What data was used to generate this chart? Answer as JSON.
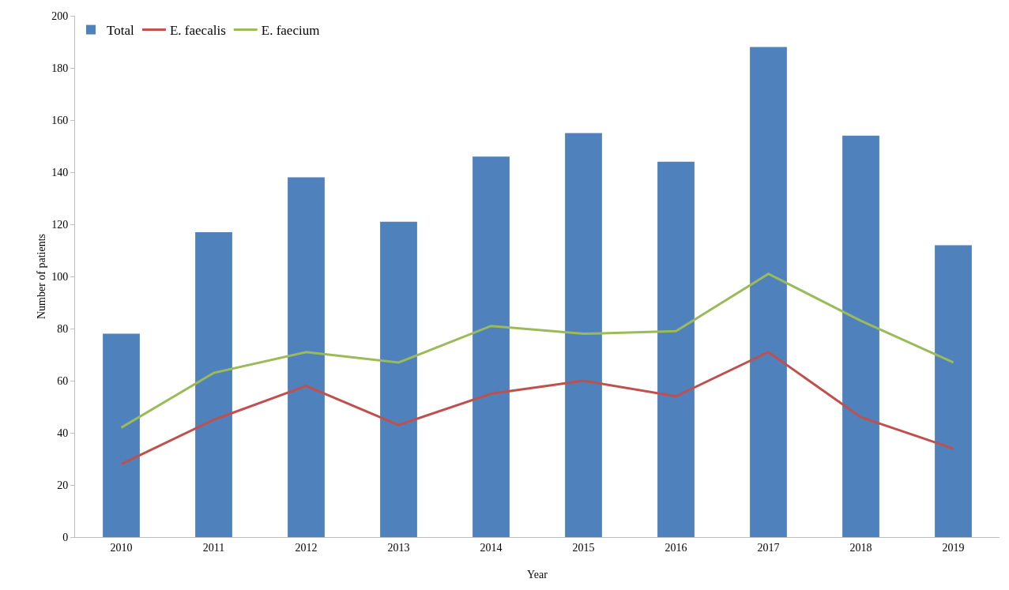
{
  "chart_data": {
    "type": "bar",
    "xlabel": "Year",
    "ylabel": "Number of patients",
    "categories": [
      "2010",
      "2011",
      "2012",
      "2013",
      "2014",
      "2015",
      "2016",
      "2017",
      "2018",
      "2019"
    ],
    "series": [
      {
        "name": "Total",
        "color": "#4f81bd",
        "values": [
          78,
          117,
          138,
          121,
          146,
          155,
          144,
          188,
          154,
          112
        ]
      },
      {
        "name": "E. faecalis",
        "type": "line",
        "color": "#c0504d",
        "values": [
          28,
          45,
          58,
          43,
          55,
          60,
          54,
          71,
          46,
          34
        ]
      },
      {
        "name": "E. faecium",
        "type": "line",
        "color": "#9bbb59",
        "values": [
          42,
          63,
          71,
          67,
          81,
          78,
          79,
          101,
          83,
          67
        ]
      }
    ],
    "ylim": [
      0,
      200
    ],
    "yticks": [
      0,
      20,
      40,
      60,
      80,
      100,
      120,
      140,
      160,
      180,
      200
    ],
    "grid": false,
    "legend": "top left",
    "marker": "none",
    "line_style": "solid"
  }
}
